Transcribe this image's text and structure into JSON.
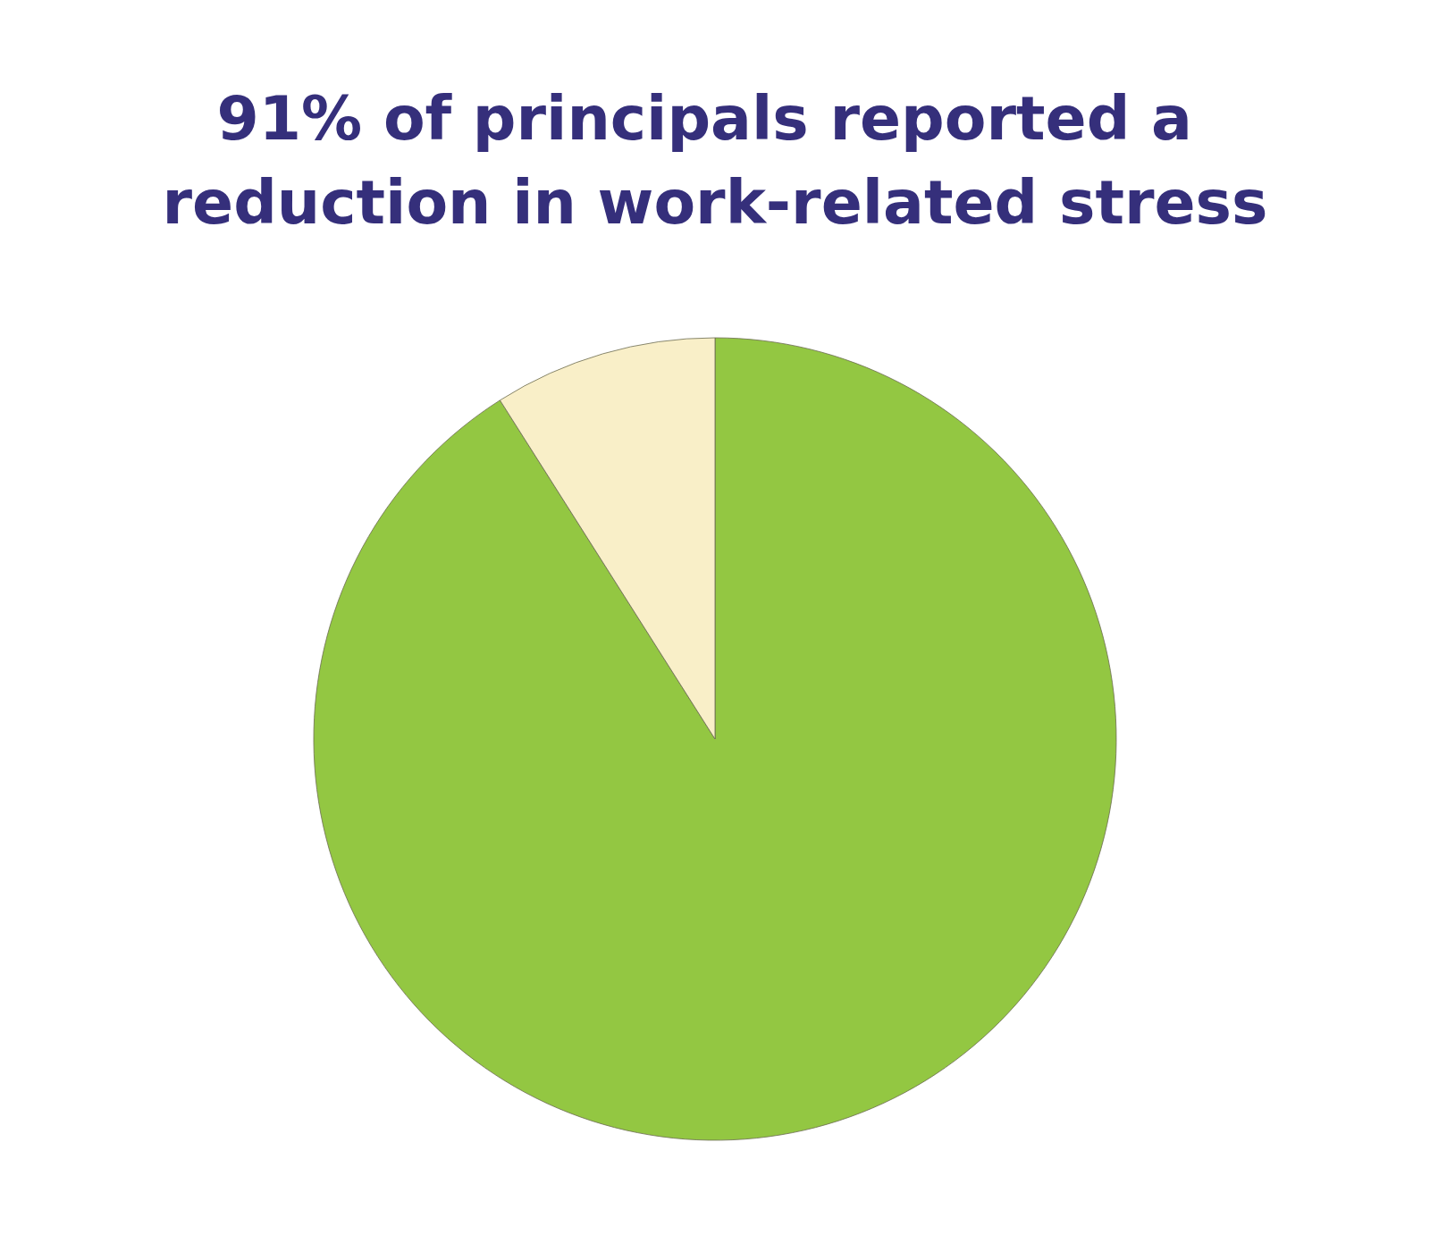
{
  "chart_data": {
    "type": "pie",
    "title": "91% of principals reported a reduction in work-related stress",
    "categories": [
      null,
      null
    ],
    "values": [
      91,
      9
    ],
    "colors": [
      "#93c742",
      "#f9efc8"
    ]
  }
}
